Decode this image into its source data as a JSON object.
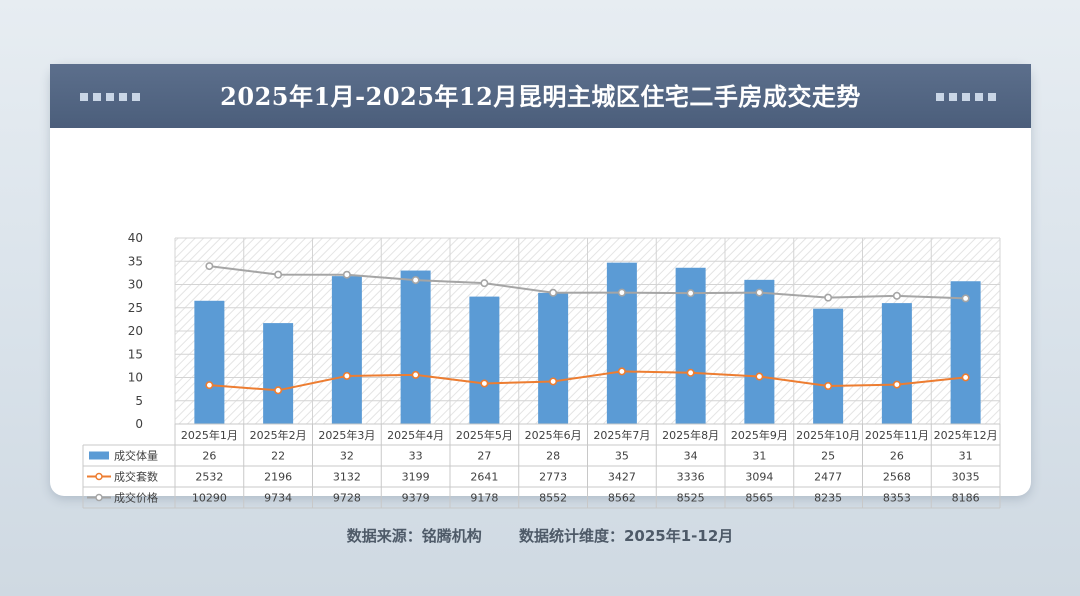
{
  "title": "2025年1月-2025年12月昆明主城区住宅二手房成交走势",
  "footer": {
    "source": "数据来源：铭腾机构",
    "period": "数据统计维度：2025年1-12月"
  },
  "chart_data": {
    "type": "bar",
    "categories": [
      "2025年1月",
      "2025年2月",
      "2025年3月",
      "2025年4月",
      "2025年5月",
      "2025年6月",
      "2025年7月",
      "2025年8月",
      "2025年9月",
      "2025年10月",
      "2025年11月",
      "2025年12月"
    ],
    "ylim": [
      0,
      40
    ],
    "yticks": [
      0,
      5,
      10,
      15,
      20,
      25,
      30,
      35,
      40
    ],
    "grid": true,
    "series": [
      {
        "name": "成交体量",
        "kind": "bar",
        "color": "#5b9bd5",
        "values": [
          26,
          22,
          32,
          33,
          27,
          28,
          35,
          34,
          31,
          25,
          26,
          31
        ],
        "plot_values": [
          26.5,
          21.7,
          31.8,
          33.0,
          27.4,
          28.2,
          34.7,
          33.6,
          31.0,
          24.8,
          26.0,
          30.7
        ]
      },
      {
        "name": "成交套数",
        "kind": "line",
        "color": "#ed7d31",
        "plot_scale": 0.0033,
        "values": [
          2532,
          2196,
          3132,
          3199,
          2641,
          2773,
          3427,
          3336,
          3094,
          2477,
          2568,
          3035
        ]
      },
      {
        "name": "成交价格",
        "kind": "line",
        "color": "#a5a5a5",
        "plot_scale": 0.0033,
        "values": [
          10290,
          9734,
          9728,
          9379,
          9178,
          8552,
          8562,
          8525,
          8565,
          8235,
          8353,
          8186
        ]
      }
    ]
  }
}
